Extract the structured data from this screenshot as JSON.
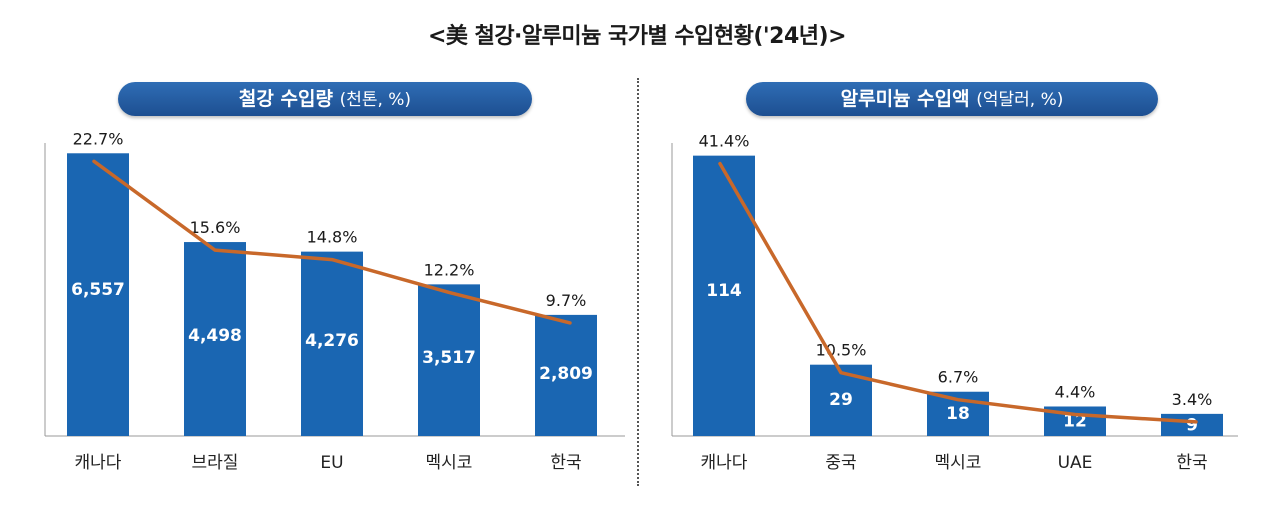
{
  "title": "<美 철강·알루미늄 국가별 수입현황('24년)>",
  "colors": {
    "bar": "#1a66b2",
    "line": "#c8682a",
    "pill": "#1d4f91"
  },
  "chart_data": [
    {
      "type": "bar",
      "title": "철강 수입량",
      "unit": "(천톤, %)",
      "categories": [
        "캐나다",
        "브라질",
        "EU",
        "멕시코",
        "한국"
      ],
      "values": [
        6557,
        4498,
        4276,
        3517,
        2809
      ],
      "value_labels": [
        "6,557",
        "4,498",
        "4,276",
        "3,517",
        "2,809"
      ],
      "share_pct": [
        22.7,
        15.6,
        14.8,
        12.2,
        9.7
      ],
      "share_labels": [
        "22.7%",
        "15.6%",
        "14.8%",
        "12.2%",
        "9.7%"
      ],
      "ylim": [
        0,
        7700
      ]
    },
    {
      "type": "bar",
      "title": "알루미늄 수입액",
      "unit": "(억달러, %)",
      "categories": [
        "캐나다",
        "중국",
        "멕시코",
        "UAE",
        "한국"
      ],
      "values": [
        114,
        29,
        18,
        12,
        9
      ],
      "value_labels": [
        "114",
        "29",
        "18",
        "12",
        "9"
      ],
      "share_pct": [
        41.4,
        10.5,
        6.7,
        4.4,
        3.4
      ],
      "share_labels": [
        "41.4%",
        "10.5%",
        "6.7%",
        "4.4%",
        "3.4%"
      ],
      "ylim": [
        0,
        135
      ]
    }
  ]
}
